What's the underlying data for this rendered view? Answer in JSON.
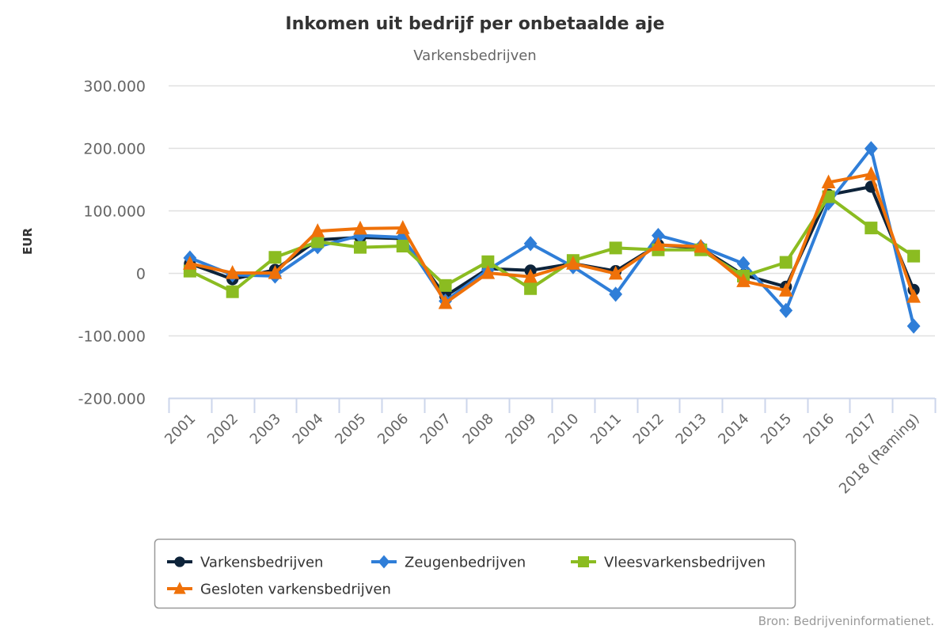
{
  "chart_data": {
    "type": "line",
    "title": "Inkomen uit bedrijf per onbetaalde aje",
    "subtitle": "Varkensbedrijven",
    "xlabel": "",
    "ylabel": "EUR",
    "ylim": [
      -200000,
      300000
    ],
    "yticks": [
      -200000,
      -100000,
      0,
      100000,
      200000,
      300000
    ],
    "ytick_labels": [
      "-200.000",
      "-100.000",
      "0",
      "100.000",
      "200.000",
      "300.000"
    ],
    "grid": true,
    "legend_position": "bottom",
    "categories": [
      "2001",
      "2002",
      "2003",
      "2004",
      "2005",
      "2006",
      "2007",
      "2008",
      "2009",
      "2010",
      "2011",
      "2012",
      "2013",
      "2014",
      "2015",
      "2016",
      "2017",
      "2018 (Raming)"
    ],
    "series": [
      {
        "name": "Varkensbedrijven",
        "color": "#0d233a",
        "marker": "circle",
        "values": [
          15000,
          -10000,
          5000,
          53000,
          57000,
          55000,
          -37000,
          7000,
          4000,
          15000,
          3000,
          45000,
          40000,
          -3000,
          -22000,
          125000,
          138000,
          -27000
        ]
      },
      {
        "name": "Zeugenbedrijven",
        "color": "#2f7ed8",
        "marker": "diamond",
        "values": [
          24000,
          -3000,
          -5000,
          42000,
          60000,
          57000,
          -45000,
          5000,
          47000,
          10000,
          -34000,
          60000,
          42000,
          15000,
          -60000,
          112000,
          199000,
          -85000
        ]
      },
      {
        "name": "Vleesvarkensbedrijven",
        "color": "#8bbc21",
        "marker": "square",
        "values": [
          3000,
          -30000,
          25000,
          50000,
          41000,
          43000,
          -20000,
          18000,
          -25000,
          20000,
          40000,
          37000,
          37000,
          -5000,
          17000,
          122000,
          72000,
          27000
        ]
      },
      {
        "name": "Gesloten varkensbedrijven",
        "color": "#ef7109",
        "marker": "triangle",
        "values": [
          15000,
          0,
          0,
          67000,
          71000,
          72000,
          -48000,
          0,
          -6000,
          15000,
          -1000,
          45000,
          42000,
          -13000,
          -28000,
          145000,
          158000,
          -38000
        ]
      }
    ],
    "credit": "Bron: Bedrijveninformatienet."
  }
}
